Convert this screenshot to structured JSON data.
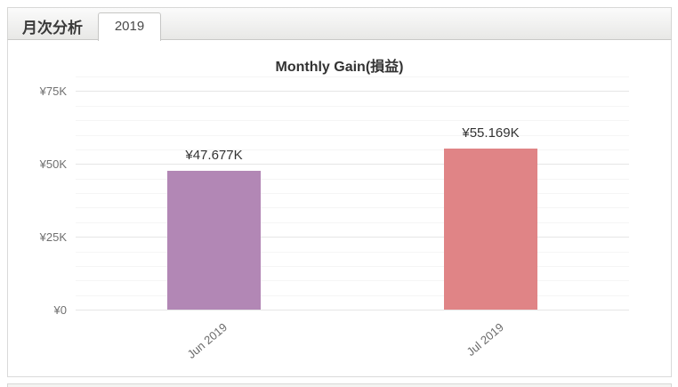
{
  "header": {
    "title": "月次分析",
    "tab": "2019"
  },
  "chart_data": {
    "type": "bar",
    "title": "Monthly Gain(損益)",
    "categories": [
      "Jun 2019",
      "Jul 2019"
    ],
    "values": [
      47.677,
      55.169
    ],
    "value_labels": [
      "¥47.677K",
      "¥55.169K"
    ],
    "bar_colors": [
      "#b287b5",
      "#e08486"
    ],
    "yticks": [
      {
        "value": 0,
        "label": "¥0"
      },
      {
        "value": 25,
        "label": "¥25K"
      },
      {
        "value": 50,
        "label": "¥50K"
      },
      {
        "value": 75,
        "label": "¥75K"
      }
    ],
    "ylim": [
      0,
      80
    ],
    "minor_grid_step": 5,
    "major_grid_step": 25,
    "xlabel": "",
    "ylabel": "",
    "legend": "none",
    "grid": "on"
  }
}
